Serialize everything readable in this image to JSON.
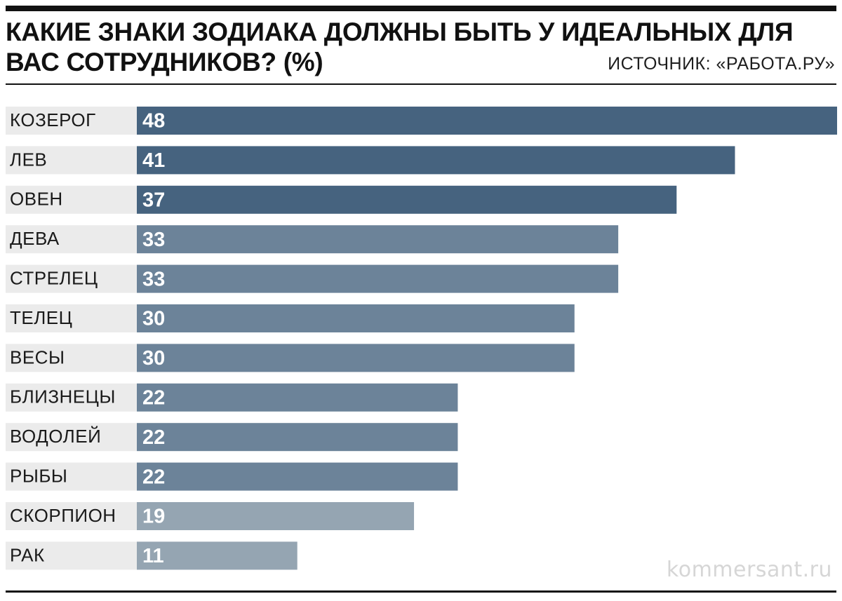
{
  "header": {
    "title": "КАКИЕ ЗНАКИ ЗОДИАКА ДОЛЖНЫ БЫТЬ У ИДЕАЛЬНЫХ ДЛЯ ВАС СОТРУДНИКОВ? (%)",
    "source": "ИСТОЧНИК: «РАБОТА.РУ»"
  },
  "footer": {
    "watermark": "kommersant.ru"
  },
  "colors": {
    "dark": "#46637f",
    "medium": "#6c8399",
    "light": "#95a5b2",
    "label_bg": "#ebebeb"
  },
  "chart_data": {
    "type": "bar",
    "orientation": "horizontal",
    "title": "КАКИЕ ЗНАКИ ЗОДИАКА ДОЛЖНЫ БЫТЬ У ИДЕАЛЬНЫХ ДЛЯ ВАС СОТРУДНИКОВ? (%)",
    "categories": [
      "КОЗЕРОГ",
      "ЛЕВ",
      "ОВЕН",
      "ДЕВА",
      "СТРЕЛЕЦ",
      "ТЕЛЕЦ",
      "ВЕСЫ",
      "БЛИЗНЕЦЫ",
      "ВОДОЛЕЙ",
      "РЫБЫ",
      "СКОРПИОН",
      "РАК"
    ],
    "values": [
      48,
      41,
      37,
      33,
      33,
      30,
      30,
      22,
      22,
      22,
      19,
      11
    ],
    "shade": [
      "dark",
      "dark",
      "dark",
      "medium",
      "medium",
      "medium",
      "medium",
      "medium",
      "medium",
      "medium",
      "light",
      "light"
    ],
    "xlim": [
      0,
      48
    ],
    "data_labels": true,
    "grid": false,
    "legend": "none"
  }
}
